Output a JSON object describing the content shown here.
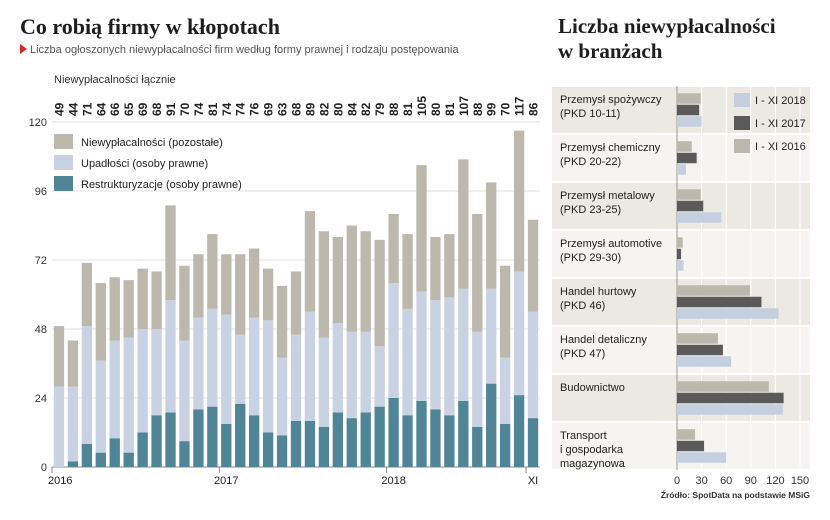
{
  "left": {
    "title": "Co robią firmy w kłopotach",
    "subtitle": "Liczba ogłoszonych niewypłacalności firm według formy prawnej i rodzaju postępowania",
    "total_label": "Niewypłacalności łącznie"
  },
  "right": {
    "title_line1": "Liczba niewypłacalności",
    "title_line2": "w branżach"
  },
  "source": "Źródło: SpotData na podstawie MSiG",
  "colors": {
    "pozostale": "#bdb8ae",
    "upadlosci": "#c9d2e2",
    "restrukturyzacje": "#4f8597",
    "y2018": "#c5cfe0",
    "y2017": "#5b5a5a",
    "y2016": "#bdb8ae",
    "band": "#ece8e2",
    "accent": "#d9262a"
  },
  "chart_data": [
    {
      "type": "bar",
      "stacked": true,
      "title": "Co robią firmy w kłopotach",
      "subtitle": "Liczba ogłoszonych niewypłacalności firm według formy prawnej i rodzaju postępowania",
      "ylim": [
        0,
        120
      ],
      "yticks": [
        0,
        24,
        48,
        72,
        96,
        120
      ],
      "grid": true,
      "legend_position": "top-left",
      "x_tick_labels": [
        {
          "index": 0,
          "label": "2016"
        },
        {
          "index": 12,
          "label": "2017"
        },
        {
          "index": 24,
          "label": "2018"
        },
        {
          "index": 34,
          "label": "XI"
        }
      ],
      "totals": [
        49,
        44,
        71,
        64,
        66,
        65,
        69,
        68,
        91,
        70,
        74,
        81,
        74,
        74,
        76,
        69,
        63,
        68,
        89,
        82,
        80,
        84,
        82,
        79,
        88,
        81,
        105,
        80,
        81,
        107,
        88,
        99,
        70,
        117,
        86
      ],
      "series": [
        {
          "name": "Restrukturyzacje (osoby prawne)",
          "color_key": "restrukturyzacje",
          "values": [
            0,
            2,
            8,
            5,
            10,
            5,
            12,
            18,
            19,
            9,
            20,
            21,
            15,
            22,
            18,
            12,
            11,
            16,
            16,
            14,
            19,
            17,
            19,
            21,
            24,
            18,
            23,
            20,
            18,
            23,
            14,
            29,
            15,
            25,
            17
          ]
        },
        {
          "name": "Upadłości (osoby prawne)",
          "color_key": "upadlosci",
          "values": [
            28,
            26,
            41,
            32,
            34,
            40,
            36,
            30,
            39,
            35,
            32,
            34,
            38,
            24,
            34,
            39,
            27,
            30,
            38,
            31,
            31,
            30,
            28,
            21,
            40,
            37,
            38,
            38,
            41,
            39,
            33,
            33,
            23,
            43,
            37
          ]
        },
        {
          "name": "Niewypłacalności (pozostałe)",
          "color_key": "pozostale",
          "values": [
            21,
            16,
            22,
            27,
            22,
            20,
            21,
            20,
            33,
            26,
            22,
            26,
            21,
            28,
            24,
            18,
            25,
            22,
            35,
            37,
            30,
            37,
            35,
            37,
            24,
            26,
            44,
            22,
            22,
            45,
            41,
            37,
            32,
            49,
            32
          ]
        }
      ]
    },
    {
      "type": "bar",
      "orientation": "horizontal",
      "title": "Liczba niewypłacalności w branżach",
      "xlim": [
        0,
        150
      ],
      "xticks": [
        0,
        30,
        60,
        90,
        120,
        150
      ],
      "legend_position": "top-right",
      "categories": [
        {
          "line1": "Przemysł spożywczy",
          "line2": "(PKD 10-11)"
        },
        {
          "line1": "Przemysł chemiczny",
          "line2": "(PKD 20-22)"
        },
        {
          "line1": "Przemysł metalowy",
          "line2": "(PKD 23-25)"
        },
        {
          "line1": "Przemysł automotive",
          "line2": "(PKD 29-30)"
        },
        {
          "line1": "Handel hurtowy",
          "line2": "(PKD 46)"
        },
        {
          "line1": "Handel detaliczny",
          "line2": "(PKD 47)"
        },
        {
          "line1": "Budownictwo",
          "line2": ""
        },
        {
          "line1": "Transport",
          "line2": "i gospodarka",
          "line3": "magazynowa"
        }
      ],
      "series": [
        {
          "name": "I - XI 2016",
          "color_key": "y2016",
          "values": [
            29,
            18,
            29,
            7,
            89,
            50,
            112,
            22
          ]
        },
        {
          "name": "I - XI 2017",
          "color_key": "y2017",
          "values": [
            27,
            24,
            32,
            5,
            103,
            56,
            130,
            33
          ]
        },
        {
          "name": "I - XI 2018",
          "color_key": "y2018",
          "values": [
            30,
            11,
            54,
            8,
            124,
            66,
            129,
            60
          ]
        }
      ]
    }
  ]
}
